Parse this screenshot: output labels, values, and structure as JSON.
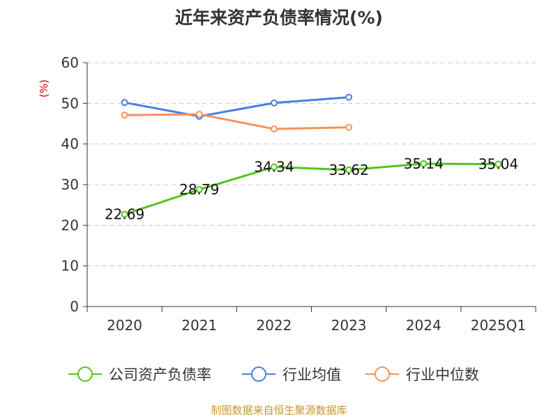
{
  "chart_data": {
    "type": "line",
    "title": "近年来资产负债率情况(%)",
    "ylabel": "(%)",
    "xlabel": "",
    "ylim": [
      0,
      60
    ],
    "yticks": [
      0,
      10,
      20,
      30,
      40,
      50,
      60
    ],
    "categories": [
      "2020",
      "2021",
      "2022",
      "2023",
      "2024",
      "2025Q1"
    ],
    "grid": true,
    "legend_position": "bottom",
    "series": [
      {
        "name": "公司资产负债率",
        "color": "#52c41a",
        "values": [
          22.69,
          28.79,
          34.34,
          33.62,
          35.14,
          35.04
        ],
        "labels": [
          "22.69",
          "28.79",
          "34.34",
          "33.62",
          "35.14",
          "35.04"
        ]
      },
      {
        "name": "行业均值",
        "color": "#4a7fe0",
        "values": [
          50.2,
          46.8,
          50.1,
          51.5,
          null,
          null
        ]
      },
      {
        "name": "行业中位数",
        "color": "#f5925a",
        "values": [
          47.1,
          47.3,
          43.7,
          44.1,
          null,
          null
        ]
      }
    ],
    "source": "制图数据来自恒生聚源数据库"
  }
}
